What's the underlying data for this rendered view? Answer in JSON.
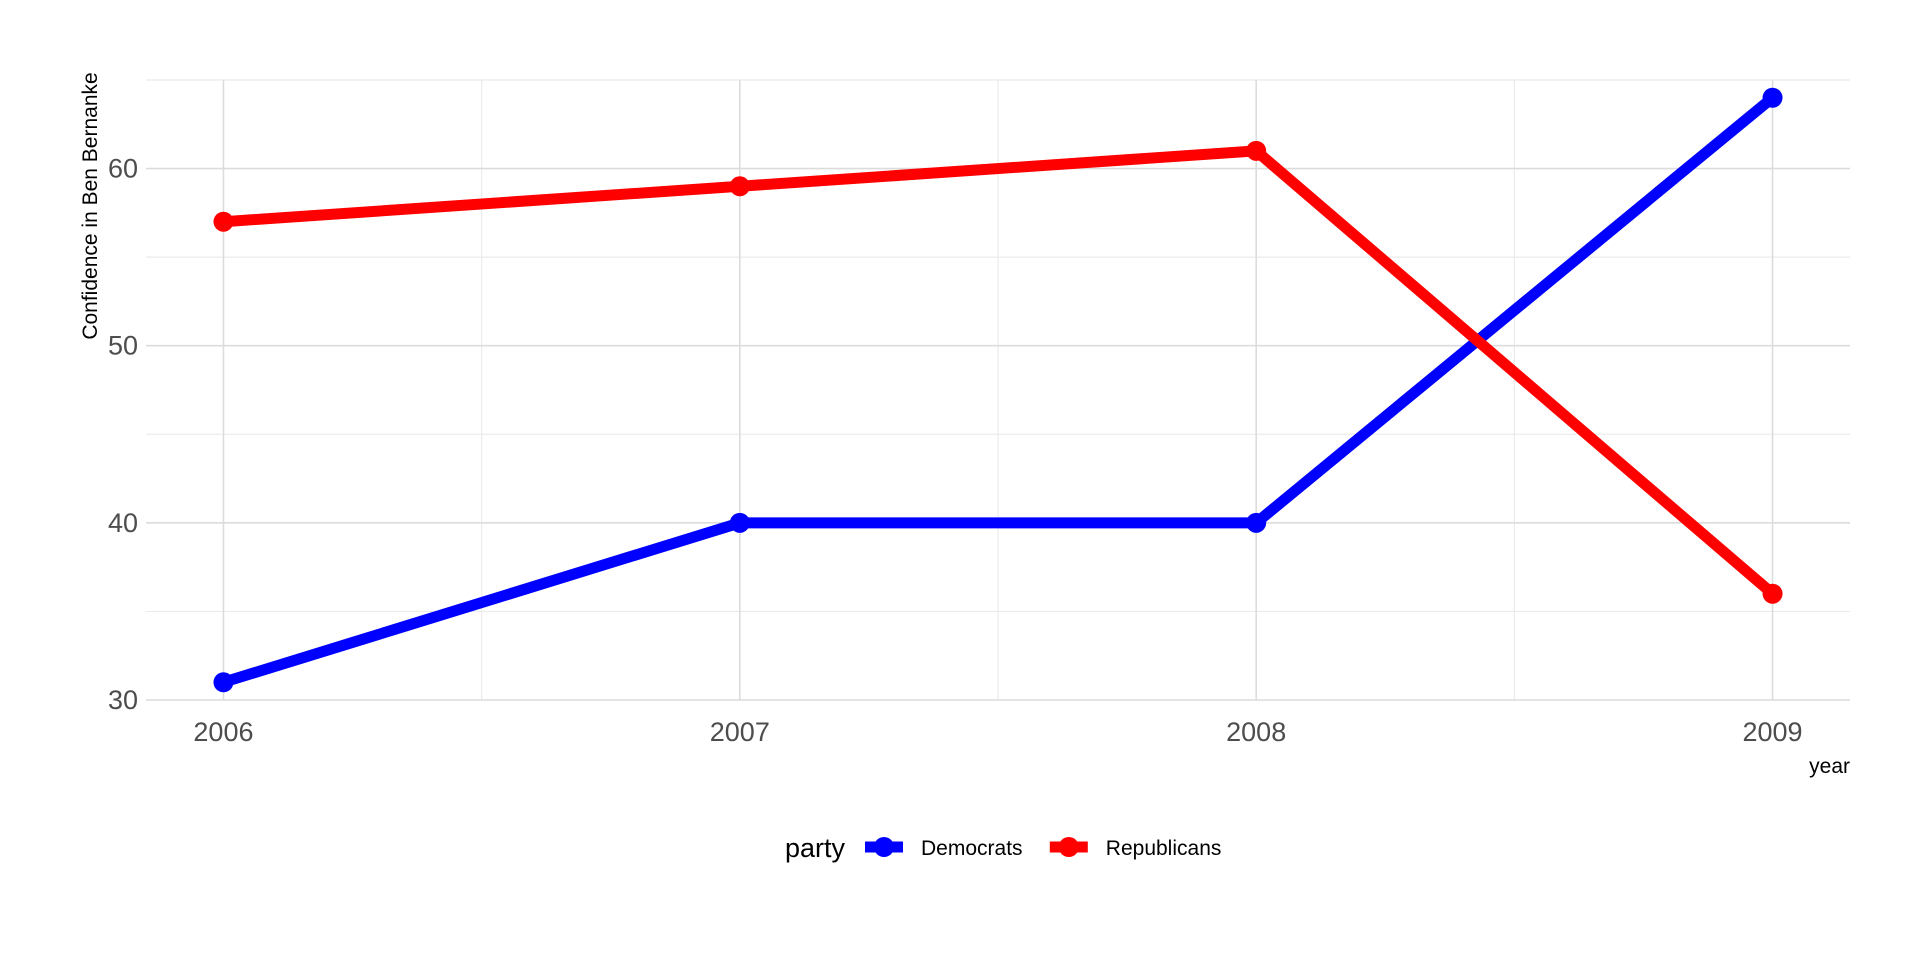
{
  "chart_data": {
    "type": "line",
    "title": "",
    "xlabel": "year",
    "ylabel": "Confidence in Ben Bernanke",
    "x": [
      2006,
      2007,
      2008,
      2009
    ],
    "xlim": [
      2005.85,
      2009.15
    ],
    "ylim": [
      30,
      65
    ],
    "y_ticks": [
      30,
      40,
      50,
      60
    ],
    "y_minor_ticks": [
      35,
      45,
      55,
      65
    ],
    "x_ticks": [
      2006,
      2007,
      2008,
      2009
    ],
    "grid": true,
    "legend": {
      "title": "party",
      "position": "bottom"
    },
    "series": [
      {
        "name": "Democrats",
        "values": [
          31,
          40,
          40,
          64
        ],
        "color": "#0000ff"
      },
      {
        "name": "Republicans",
        "values": [
          57,
          59,
          61,
          36
        ],
        "color": "#ff0000"
      }
    ]
  }
}
